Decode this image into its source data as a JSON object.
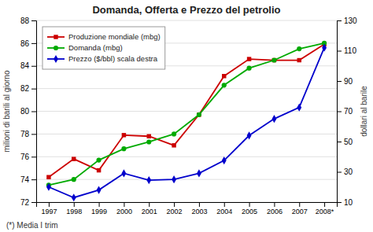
{
  "chart_data": {
    "type": "line",
    "title": "Domanda, Offerta e Prezzo del petrolio",
    "categories": [
      "1997",
      "1998",
      "1999",
      "2000",
      "2001",
      "2002",
      "2003",
      "2004",
      "2005",
      "2006",
      "2007",
      "2008*"
    ],
    "series": [
      {
        "name": "Produzione mondiale (mbg)",
        "color": "#cc0000",
        "marker": "square",
        "values": [
          74.2,
          75.8,
          74.8,
          77.9,
          77.8,
          77.0,
          79.7,
          83.1,
          84.6,
          84.5,
          84.5,
          85.9
        ]
      },
      {
        "name": "Domanda (mbg)",
        "color": "#00aa00",
        "marker": "circle",
        "values": [
          73.5,
          74.0,
          75.7,
          76.7,
          77.3,
          78.0,
          79.7,
          82.3,
          83.8,
          84.5,
          85.5,
          86.0
        ]
      },
      {
        "name": "Prezzo ($/bbl) scala destra",
        "color": "#0000cc",
        "marker": "diamond",
        "axis": "y2",
        "values": [
          20.0,
          13.0,
          18.0,
          29.0,
          24.5,
          25.0,
          29.0,
          37.5,
          54.0,
          65.0,
          72.5,
          112.0
        ]
      }
    ],
    "ylabel": "milioni di barili al giorno",
    "y2label": "dollari al barile",
    "annotation": "(*) Media I trim",
    "ylim": [
      72,
      88
    ],
    "yticks": [
      72,
      74,
      76,
      78,
      80,
      82,
      84,
      86,
      88
    ],
    "y2lim": [
      10,
      130
    ],
    "y2ticks": [
      10,
      30,
      50,
      70,
      90,
      110,
      130
    ],
    "grid": true,
    "legend": "upper left"
  }
}
